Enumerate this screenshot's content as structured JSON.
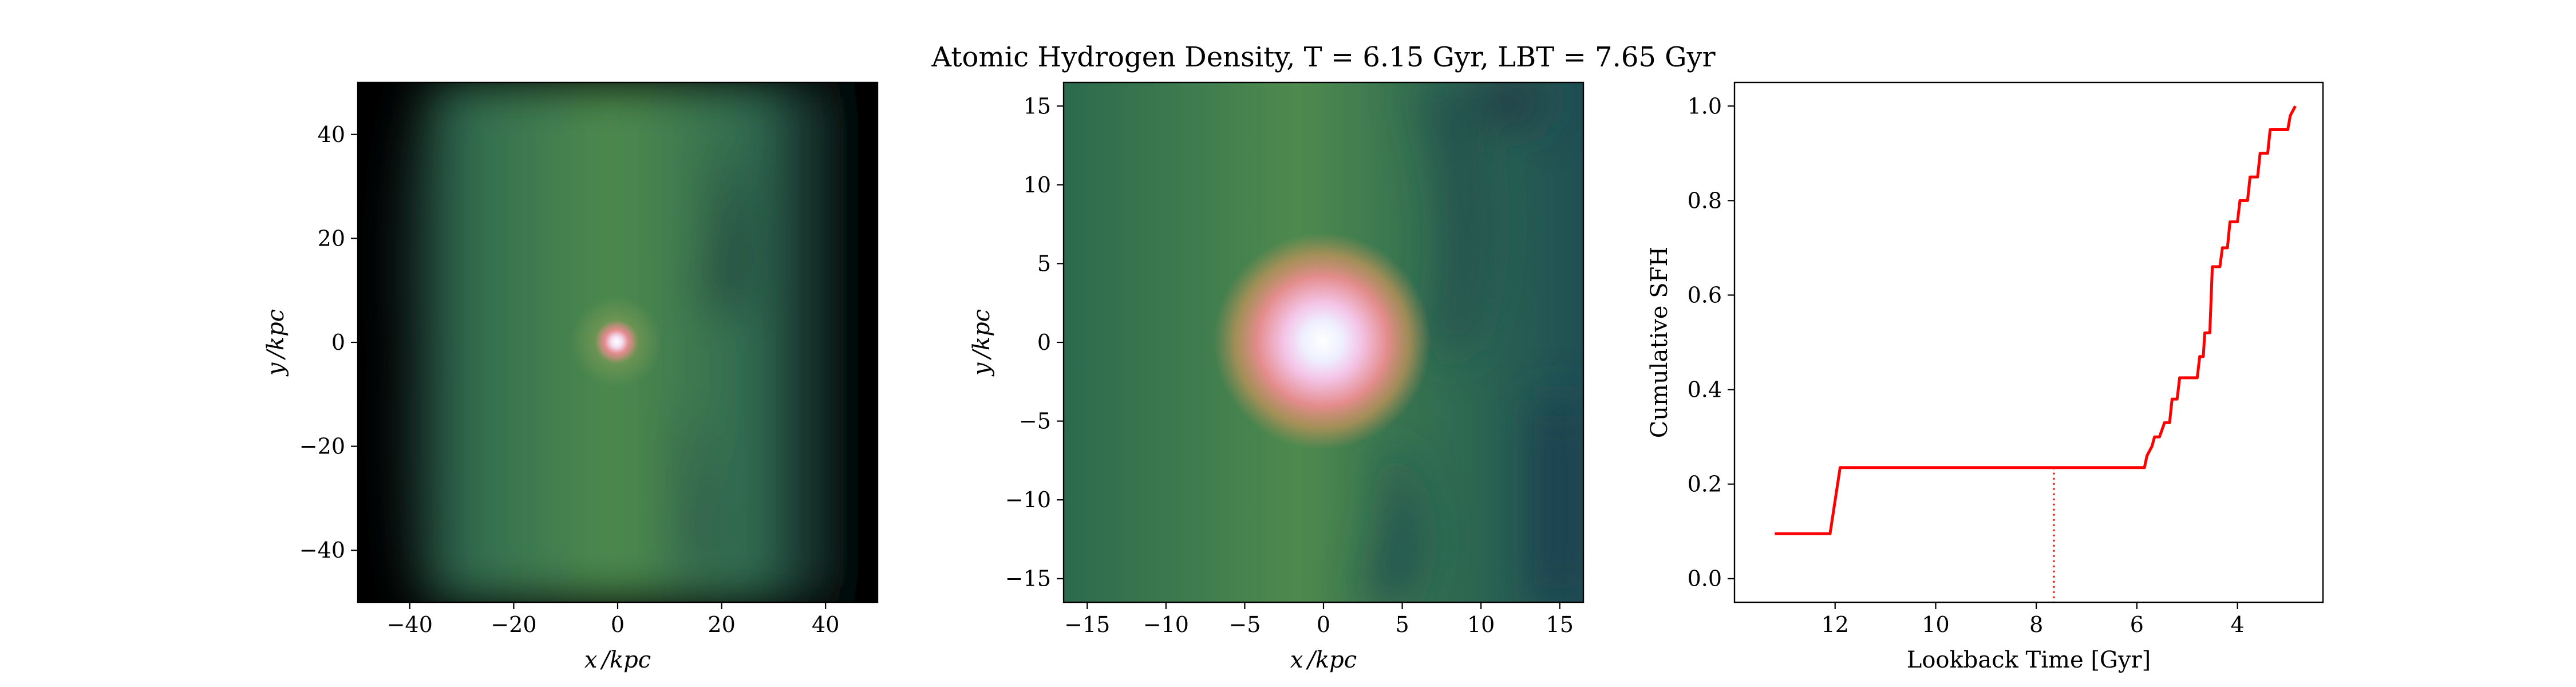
{
  "figure": {
    "title": "Atomic Hydrogen Density, T = 6.15 Gyr, LBT = 7.65 Gyr"
  },
  "chart_data": [
    {
      "type": "heatmap",
      "xlabel": "x /kpc",
      "ylabel": "y /kpc",
      "xlim": [
        -50,
        50
      ],
      "ylim": [
        -50,
        50
      ],
      "xticks": [
        "−40",
        "−20",
        "0",
        "20",
        "40"
      ],
      "yticks": [
        "−40",
        "−20",
        "0",
        "20",
        "40"
      ],
      "colormap": [
        "#000000",
        "#2b1f3a",
        "#2d5a4c",
        "#4b8a4e",
        "#a9905a",
        "#e58a8e",
        "#f5c6e6",
        "#ffffff"
      ]
    },
    {
      "type": "heatmap",
      "xlabel": "x /kpc",
      "ylabel": "y /kpc",
      "xlim": [
        -16.5,
        16.5
      ],
      "ylim": [
        -16.5,
        16.5
      ],
      "xticks": [
        "−15",
        "−10",
        "−5",
        "0",
        "5",
        "10",
        "15"
      ],
      "yticks": [
        "−15",
        "−10",
        "−5",
        "0",
        "5",
        "10",
        "15"
      ],
      "colormap": [
        "#1e4f52",
        "#2d6a4f",
        "#4b8a4e",
        "#a9905a",
        "#e58a8e",
        "#f5c6e6",
        "#ffffff"
      ]
    },
    {
      "type": "line",
      "xlabel": "Lookback Time [Gyr]",
      "ylabel": "Cumulative SFH",
      "xlim": [
        14.0,
        2.3
      ],
      "ylim": [
        -0.05,
        1.05
      ],
      "xticks": [
        12,
        10,
        8,
        6,
        4
      ],
      "yticks": [
        "0.0",
        "0.2",
        "0.4",
        "0.6",
        "0.8",
        "1.0"
      ],
      "color": "#ff0000",
      "marker_lbt": 7.65,
      "series": [
        {
          "x": [
            13.2,
            12.1,
            11.9,
            5.85,
            5.8,
            5.7,
            5.65,
            5.55,
            5.45,
            5.35,
            5.3,
            5.2,
            5.15,
            4.8,
            4.75,
            4.68,
            4.65,
            4.55,
            4.5,
            4.35,
            4.3,
            4.2,
            4.15,
            4.0,
            3.95,
            3.8,
            3.75,
            3.6,
            3.55,
            3.4,
            3.35,
            3.2,
            3.15,
            3.0,
            2.95,
            2.85
          ],
          "y": [
            0.095,
            0.095,
            0.235,
            0.235,
            0.26,
            0.28,
            0.3,
            0.3,
            0.33,
            0.33,
            0.38,
            0.38,
            0.425,
            0.425,
            0.47,
            0.47,
            0.52,
            0.52,
            0.66,
            0.66,
            0.7,
            0.7,
            0.755,
            0.755,
            0.8,
            0.8,
            0.85,
            0.85,
            0.9,
            0.9,
            0.95,
            0.95,
            0.95,
            0.95,
            0.98,
            1.0
          ]
        }
      ]
    }
  ]
}
